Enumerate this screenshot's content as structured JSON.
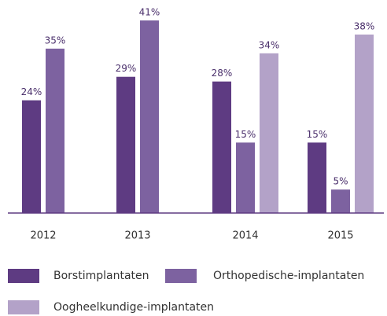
{
  "chart_data": {
    "type": "bar",
    "categories": [
      "2012",
      "2013",
      "2014",
      "2015"
    ],
    "series": [
      {
        "name": "Borstimplantaten",
        "color": "#5e3b82",
        "values": [
          24,
          29,
          28,
          15
        ],
        "value_labels": [
          "24%",
          "29%",
          "28%",
          "15%"
        ]
      },
      {
        "name": "Orthopedische-implantaten",
        "color": "#7d62a0",
        "values": [
          35,
          41,
          15,
          5
        ],
        "value_labels": [
          "35%",
          "41%",
          "15%",
          "5%"
        ]
      },
      {
        "name": "Oogheelkundige-implantaten",
        "color": "#b3a2c8",
        "values": [
          null,
          null,
          34,
          38
        ],
        "value_labels": [
          null,
          null,
          "34%",
          "38%"
        ]
      }
    ]
  }
}
